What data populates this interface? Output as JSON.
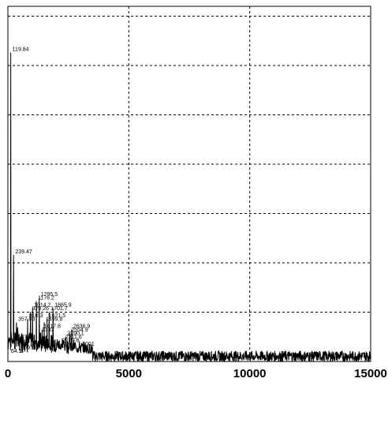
{
  "chart_data": {
    "type": "line",
    "title": "",
    "xlabel": "",
    "ylabel": "",
    "xlim": [
      0,
      15000
    ],
    "ylim": [
      0,
      1
    ],
    "grid": true,
    "x_ticks": [
      {
        "value": 0,
        "label": "0"
      },
      {
        "value": 5000,
        "label": "5000"
      },
      {
        "value": 10000,
        "label": "10000"
      },
      {
        "value": 15000,
        "label": "15000"
      }
    ],
    "y_grid_fractions": [
      0.1389,
      0.2778,
      0.4167,
      0.5556,
      0.6944,
      0.8333,
      0.9722
    ],
    "line_color": "#000000",
    "peaks": [
      {
        "x": 119.84,
        "y": 0.87,
        "label": "119.84"
      },
      {
        "x": 239.47,
        "y": 0.3,
        "label": "239.47"
      },
      {
        "x": 357.03,
        "y": 0.11,
        "label": "357.03"
      },
      {
        "x": 476.3,
        "y": 0.06,
        "label": "476.3"
      },
      {
        "x": 597.8,
        "y": 0.03,
        "label": "597.8"
      },
      {
        "x": 810.3,
        "y": 0.12,
        "label": "810.3"
      },
      {
        "x": 929.26,
        "y": 0.14,
        "label": "929.26"
      },
      {
        "x": 1014.2,
        "y": 0.15,
        "label": "1014.2"
      },
      {
        "x": 1176.2,
        "y": 0.17,
        "label": "1176.2"
      },
      {
        "x": 1295.5,
        "y": 0.18,
        "label": "1295.5"
      },
      {
        "x": 1333,
        "y": 0.08,
        "label": "1333"
      },
      {
        "x": 1417.8,
        "y": 0.09,
        "label": "1417.8"
      },
      {
        "x": 1499.8,
        "y": 0.11,
        "label": "1499.8"
      },
      {
        "x": 1621.5,
        "y": 0.12,
        "label": "1621.5"
      },
      {
        "x": 1701.7,
        "y": 0.14,
        "label": "1701.7"
      },
      {
        "x": 1865.9,
        "y": 0.15,
        "label": "1865.9"
      },
      {
        "x": 2189.6,
        "y": 0.05,
        "label": "2189.6"
      },
      {
        "x": 2311.6,
        "y": 0.06,
        "label": "2311.6"
      },
      {
        "x": 2390.1,
        "y": 0.07,
        "label": "2390.1"
      },
      {
        "x": 2554.9,
        "y": 0.08,
        "label": "2554.9"
      },
      {
        "x": 2636.9,
        "y": 0.09,
        "label": "2636.9"
      },
      {
        "x": 3001,
        "y": 0.04,
        "label": "3001"
      },
      {
        "x": 64.1,
        "y": 0.02,
        "label": "64.1"
      }
    ],
    "noise_level": 0.03
  }
}
